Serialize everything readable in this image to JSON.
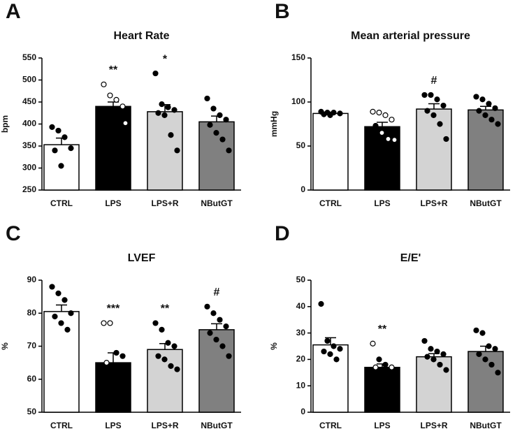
{
  "chart_data": [
    {
      "type": "bar",
      "panel": "A",
      "title": "Heart Rate",
      "ylabel": "bpm",
      "categories": [
        "CTRL",
        "LPS",
        "LPS+R",
        "NButGT"
      ],
      "values": [
        353,
        440,
        428,
        405
      ],
      "errors": [
        15,
        10,
        16,
        13
      ],
      "colors": [
        "#ffffff",
        "#000000",
        "#d3d3d3",
        "#808080"
      ],
      "points": [
        [
          393,
          385,
          370,
          345,
          340,
          305
        ],
        [
          490,
          465,
          455,
          440,
          433,
          420,
          410,
          402
        ],
        [
          515,
          445,
          438,
          432,
          425,
          420,
          375,
          340
        ],
        [
          458,
          435,
          420,
          410,
          398,
          380,
          365,
          340
        ]
      ],
      "point_open": [
        [
          false,
          false,
          false,
          false,
          false,
          false
        ],
        [
          true,
          true,
          true,
          true,
          false,
          false,
          false,
          true
        ],
        [
          false,
          false,
          false,
          false,
          false,
          false,
          false,
          false
        ],
        [
          false,
          false,
          false,
          false,
          false,
          false,
          false,
          false
        ]
      ],
      "annotations": [
        null,
        "**",
        "*",
        null
      ],
      "ylim": [
        250,
        550
      ],
      "yticks": [
        250,
        300,
        350,
        400,
        450,
        500,
        550
      ]
    },
    {
      "type": "bar",
      "panel": "B",
      "title": "Mean arterial pressure",
      "ylabel": "mmHg",
      "categories": [
        "CTRL",
        "LPS",
        "LPS+R",
        "NButGT"
      ],
      "values": [
        87,
        72,
        92,
        91
      ],
      "errors": [
        1.5,
        5,
        6,
        4
      ],
      "colors": [
        "#ffffff",
        "#000000",
        "#d3d3d3",
        "#808080"
      ],
      "points": [
        [
          89,
          88,
          88,
          87,
          86,
          85
        ],
        [
          89,
          88,
          85,
          80,
          73,
          65,
          58,
          57
        ],
        [
          108,
          108,
          103,
          96,
          90,
          85,
          75,
          58
        ],
        [
          106,
          103,
          98,
          93,
          90,
          85,
          80,
          75
        ]
      ],
      "point_open": [
        [
          false,
          false,
          false,
          false,
          false,
          false
        ],
        [
          true,
          true,
          true,
          true,
          false,
          true,
          true,
          true
        ],
        [
          false,
          false,
          false,
          false,
          false,
          false,
          false,
          false
        ],
        [
          false,
          false,
          false,
          false,
          false,
          false,
          false,
          false
        ]
      ],
      "annotations": [
        null,
        null,
        "#",
        null
      ],
      "ylim": [
        0,
        150
      ],
      "yticks": [
        0,
        50,
        100,
        150
      ]
    },
    {
      "type": "bar",
      "panel": "C",
      "title": "LVEF",
      "ylabel": "%",
      "categories": [
        "CTRL",
        "LPS",
        "LPS+R",
        "NButGT"
      ],
      "values": [
        80.5,
        65,
        69,
        75
      ],
      "errors": [
        2,
        3,
        1.8,
        1.8
      ],
      "colors": [
        "#ffffff",
        "#000000",
        "#d3d3d3",
        "#808080"
      ],
      "points": [
        [
          88,
          86,
          84,
          80,
          79,
          77,
          75
        ],
        [
          77,
          77,
          68,
          67,
          65,
          60,
          55,
          54
        ],
        [
          77,
          75,
          71,
          70,
          67,
          66,
          64,
          63
        ],
        [
          82,
          80,
          78,
          76,
          74,
          72,
          70,
          67
        ]
      ],
      "point_open": [
        [
          false,
          false,
          false,
          false,
          false,
          false,
          false
        ],
        [
          true,
          true,
          false,
          false,
          true,
          false,
          false,
          false
        ],
        [
          false,
          false,
          false,
          false,
          false,
          false,
          false,
          false
        ],
        [
          false,
          false,
          false,
          false,
          false,
          false,
          false,
          false
        ]
      ],
      "annotations": [
        null,
        "***",
        "**",
        "#"
      ],
      "ylim": [
        50,
        90
      ],
      "yticks": [
        50,
        60,
        70,
        80,
        90
      ]
    },
    {
      "type": "bar",
      "panel": "D",
      "title": "E/E'",
      "ylabel": "%",
      "categories": [
        "CTRL",
        "LPS",
        "LPS+R",
        "NButGT"
      ],
      "values": [
        25.5,
        17,
        21,
        23
      ],
      "errors": [
        2.7,
        1.3,
        1.2,
        2
      ],
      "colors": [
        "#ffffff",
        "#000000",
        "#d3d3d3",
        "#808080"
      ],
      "points": [
        [
          41,
          27,
          25,
          24,
          23,
          22,
          20
        ],
        [
          26,
          20,
          18,
          17,
          17,
          16,
          15,
          13
        ],
        [
          27,
          24,
          23,
          22,
          21,
          20,
          18,
          16
        ],
        [
          31,
          30,
          25,
          24,
          22,
          20,
          18,
          15
        ]
      ],
      "point_open": [
        [
          false,
          false,
          false,
          false,
          false,
          false,
          false
        ],
        [
          true,
          false,
          false,
          true,
          true,
          false,
          false,
          false
        ],
        [
          false,
          false,
          false,
          false,
          false,
          false,
          false,
          false
        ],
        [
          false,
          false,
          false,
          false,
          false,
          false,
          false,
          false
        ]
      ],
      "annotations": [
        null,
        "**",
        null,
        null
      ],
      "ylim": [
        0,
        50
      ],
      "yticks": [
        0,
        10,
        20,
        30,
        40,
        50
      ]
    }
  ]
}
